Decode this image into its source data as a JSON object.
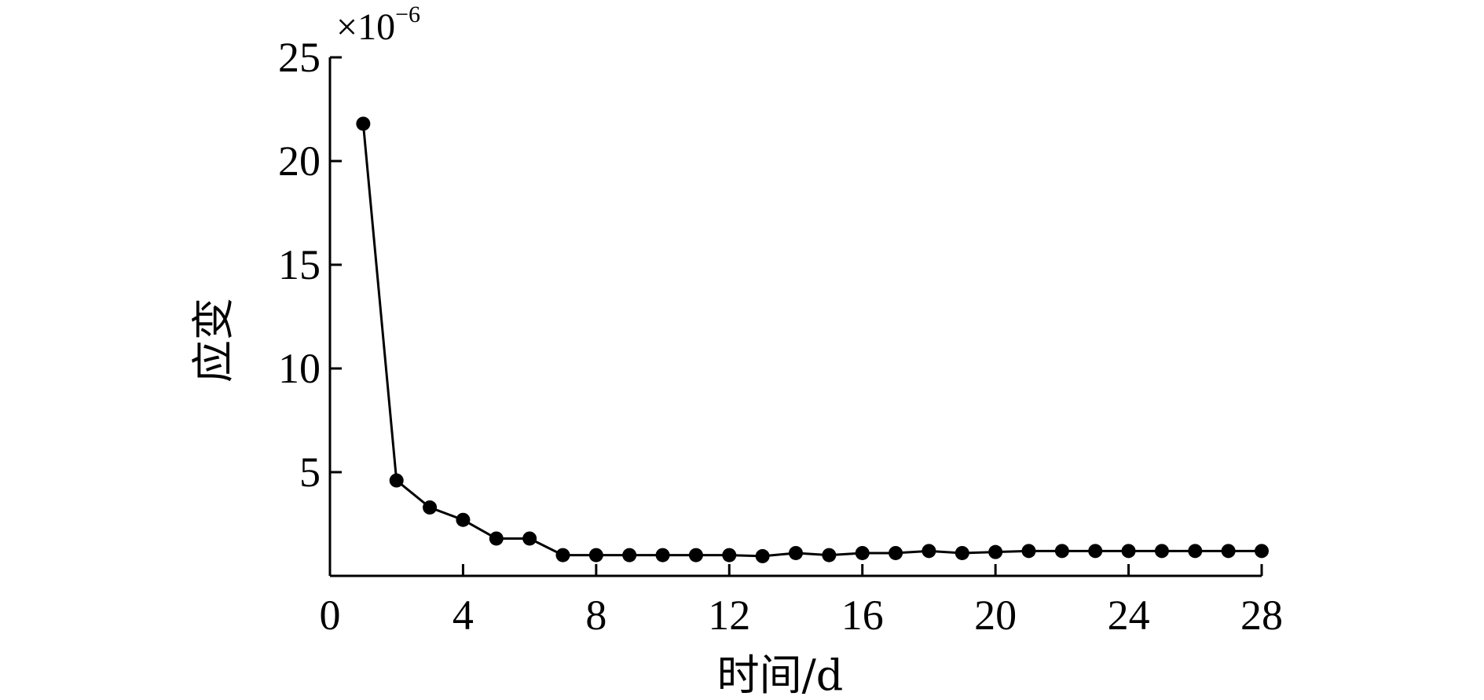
{
  "chart_data": {
    "type": "line",
    "xlabel": "时间/d",
    "ylabel": "应变",
    "y_multiplier": {
      "base": "×10",
      "exponent": "−6"
    },
    "xlim": [
      0,
      28
    ],
    "ylim": [
      0,
      25
    ],
    "x_ticks": [
      0,
      4,
      8,
      12,
      16,
      20,
      24,
      28
    ],
    "y_ticks": [
      5,
      10,
      15,
      20,
      25
    ],
    "x_tick_labels": [
      "0",
      "4",
      "8",
      "12",
      "16",
      "20",
      "24",
      "28"
    ],
    "y_tick_labels": [
      "5",
      "10",
      "15",
      "20",
      "25"
    ],
    "grid": false,
    "marker": "filled-circle",
    "series": [
      {
        "x": [
          1,
          2,
          3,
          4,
          5,
          6,
          7,
          8,
          9,
          10,
          11,
          12,
          13,
          14,
          15,
          16,
          17,
          18,
          19,
          20,
          21,
          22,
          23,
          24,
          25,
          26,
          27,
          28
        ],
        "values": [
          21.8,
          4.6,
          3.3,
          2.7,
          1.8,
          1.8,
          1.0,
          1.0,
          1.0,
          1.0,
          1.0,
          1.0,
          0.95,
          1.1,
          1.0,
          1.1,
          1.1,
          1.2,
          1.1,
          1.15,
          1.2,
          1.2,
          1.2,
          1.2,
          1.2,
          1.2,
          1.2,
          1.2
        ]
      }
    ]
  }
}
